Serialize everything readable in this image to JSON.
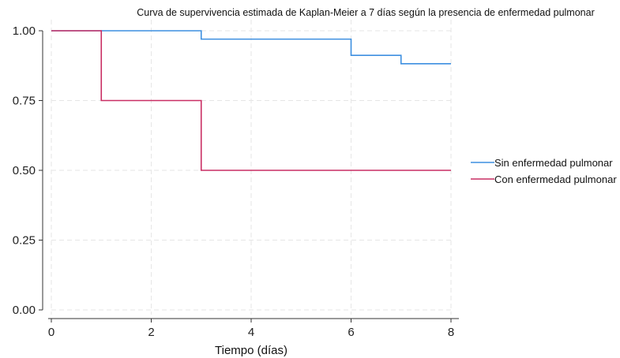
{
  "chart_data": {
    "type": "line",
    "step": true,
    "title": "Curva de supervivencia estimada de Kaplan-Meier a 7 días según la presencia de enfermedad pulmonar",
    "xlabel": "Tiempo (días)",
    "ylabel": "",
    "xlim": [
      0,
      8
    ],
    "ylim": [
      0,
      1
    ],
    "x_ticks": [
      0,
      2,
      4,
      6,
      8
    ],
    "x_tick_labels": [
      "0",
      "2",
      "4",
      "6",
      "8"
    ],
    "y_ticks": [
      0,
      0.25,
      0.5,
      0.75,
      1
    ],
    "y_tick_labels": [
      "0.00",
      "0.25",
      "0.50",
      "0.75",
      "1.00"
    ],
    "grid": true,
    "legend_position": "right",
    "series": [
      {
        "name": "Sin enfermedad pulmonar",
        "color": "#3d8fe0",
        "x": [
          0,
          3,
          6,
          7,
          8
        ],
        "y": [
          1.0,
          0.97,
          0.912,
          0.882,
          0.882
        ]
      },
      {
        "name": "Con enfermedad pulmonar",
        "color": "#c92e63",
        "x": [
          0,
          1,
          3,
          8
        ],
        "y": [
          1.0,
          0.75,
          0.5,
          0.5
        ]
      }
    ]
  }
}
